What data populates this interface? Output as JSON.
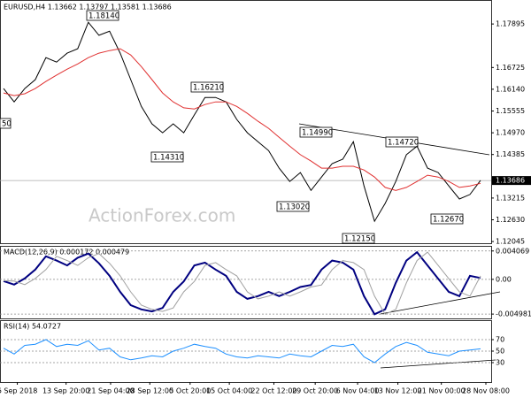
{
  "chart_data": [
    {
      "type": "line",
      "title": "EURUSD,H4 1.13662 1.13797 1.13581 1.13686",
      "watermark": "ActionForex.com",
      "xlim": [
        0,
        46
      ],
      "ylim": [
        1.12,
        1.1854
      ],
      "grid": false,
      "yticks": [
        1.17895,
        1.16725,
        {
          "value": 1.1614,
          "label": "1.16140"
        },
        1.15555,
        {
          "value": 1.1497,
          "label": "1.14970"
        },
        1.14385,
        1.13215,
        {
          "value": 1.1263,
          "label": "1.12630"
        },
        1.12045
      ],
      "last_price": 1.13686,
      "annotations": [
        "1.18140",
        "1.16210",
        "1.14310",
        "1.14990",
        "1.14720",
        "1.13020",
        "1.12150",
        "1.12670",
        "50"
      ],
      "series": [
        {
          "color": "#000000",
          "values": [
            1.1616,
            1.158,
            1.1616,
            1.164,
            1.1699,
            1.1687,
            1.1711,
            1.1723,
            1.1794,
            1.1759,
            1.177,
            1.1711,
            1.164,
            1.1568,
            1.1521,
            1.1497,
            1.1521,
            1.1497,
            1.1545,
            1.1592,
            1.1592,
            1.158,
            1.1533,
            1.1497,
            1.1473,
            1.1449,
            1.1402,
            1.1366,
            1.139,
            1.1342,
            1.1378,
            1.1414,
            1.1426,
            1.1473,
            1.1354,
            1.1259,
            1.1307,
            1.1366,
            1.1438,
            1.1461,
            1.1402,
            1.139,
            1.1354,
            1.1319,
            1.1331,
            1.1369
          ]
        },
        {
          "color": "#e03030",
          "values": [
            1.1604,
            1.1597,
            1.1602,
            1.1616,
            1.1635,
            1.1652,
            1.1668,
            1.1682,
            1.1699,
            1.1711,
            1.1718,
            1.1723,
            1.1706,
            1.1675,
            1.164,
            1.1604,
            1.158,
            1.1564,
            1.1561,
            1.1573,
            1.158,
            1.158,
            1.1568,
            1.1549,
            1.1528,
            1.1509,
            1.1485,
            1.1461,
            1.1438,
            1.1421,
            1.1402,
            1.1402,
            1.1407,
            1.1407,
            1.1397,
            1.1378,
            1.135,
            1.1342,
            1.135,
            1.1366,
            1.1383,
            1.1378,
            1.1366,
            1.135,
            1.1354,
            1.1361
          ]
        }
      ]
    },
    {
      "type": "line",
      "title": "MACD(12,26,9) 0.000172 0.000479",
      "xlim": [
        0,
        46
      ],
      "ylim": [
        -0.0056,
        0.0048
      ],
      "grid": true,
      "yticks": [
        0.004069,
        {
          "value": 0,
          "label": "0.00"
        },
        -0.004981
      ],
      "series": [
        {
          "color": "#000080",
          "width": 2,
          "values": [
            -0.00025,
            -0.00076,
            0.00013,
            0.0014,
            0.0033,
            0.0027,
            0.002,
            0.0031,
            0.0037,
            0.0023,
            0.0005,
            -0.0018,
            -0.0037,
            -0.0043,
            -0.0046,
            -0.0041,
            -0.0018,
            -0.0003,
            0.002,
            0.0024,
            0.0014,
            0.0005,
            -0.0018,
            -0.0028,
            -0.0024,
            -0.0018,
            -0.0024,
            -0.0018,
            -0.0011,
            -0.0008,
            0.0014,
            0.0027,
            0.0024,
            0.0014,
            -0.0024,
            -0.005,
            -0.0043,
            -0.0005,
            0.0027,
            0.0039,
            0.002,
            0.0001,
            -0.0018,
            -0.0024,
            0.0005,
            0.0002
          ]
        },
        {
          "color": "#a0a0a0",
          "width": 1,
          "values": [
            -0.0002,
            -0.00025,
            -0.00076,
            0.00013,
            0.0014,
            0.0033,
            0.0027,
            0.002,
            0.0031,
            0.0037,
            0.0023,
            0.0005,
            -0.0018,
            -0.0037,
            -0.0043,
            -0.0046,
            -0.0041,
            -0.0018,
            -0.0003,
            0.002,
            0.0024,
            0.0014,
            0.0005,
            -0.0018,
            -0.0028,
            -0.0024,
            -0.0018,
            -0.0024,
            -0.0018,
            -0.0011,
            -0.0008,
            0.0014,
            0.0027,
            0.0024,
            0.0014,
            -0.0024,
            -0.005,
            -0.0043,
            -0.0005,
            0.0027,
            0.0039,
            0.002,
            0.0001,
            -0.0018,
            -0.0024,
            0.0005
          ]
        }
      ]
    },
    {
      "type": "line",
      "title": "RSI(14) 54.0727",
      "xlim": [
        0,
        46
      ],
      "ylim": [
        -3.8,
        103.8
      ],
      "grid": true,
      "yticks": [
        70,
        50,
        30
      ],
      "xticks": [
        {
          "value": 1.3,
          "label": "6 Sep 2018"
        },
        {
          "value": 5.9,
          "label": "13 Sep 20:00"
        },
        {
          "value": 10.1,
          "label": "21 Sep 04:00"
        },
        {
          "value": 13.8,
          "label": "28 Sep 12:00"
        },
        {
          "value": 17.6,
          "label": "5 Oct 20:00"
        },
        {
          "value": 21.3,
          "label": "15 Oct 04:00"
        },
        {
          "value": 25.5,
          "label": "22 Oct 12:00"
        },
        {
          "value": 29.4,
          "label": "29 Oct 20:00"
        },
        {
          "value": 33.4,
          "label": "6 Nov 04:00"
        },
        {
          "value": 37.2,
          "label": "13 Nov 12:00"
        },
        {
          "value": 41.3,
          "label": "21 Nov 00:00"
        },
        {
          "value": 45.5,
          "label": "28 Nov 08:00"
        }
      ],
      "series": [
        {
          "color": "#1e90ff",
          "width": 1,
          "values": [
            55,
            45,
            60,
            62,
            70,
            58,
            62,
            60,
            68,
            52,
            55,
            40,
            35,
            38,
            42,
            40,
            50,
            55,
            62,
            58,
            55,
            45,
            40,
            38,
            42,
            40,
            38,
            45,
            42,
            40,
            50,
            60,
            58,
            62,
            40,
            30,
            45,
            58,
            65,
            60,
            48,
            45,
            42,
            50,
            52,
            54
          ]
        }
      ]
    }
  ]
}
